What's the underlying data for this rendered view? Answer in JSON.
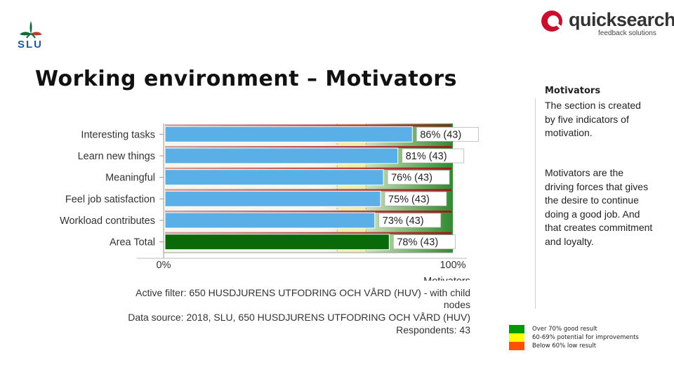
{
  "logos": {
    "slu_text": "SLU",
    "quicksearch_name": "quicksearch",
    "quicksearch_tagline": "feedback solutions"
  },
  "page": {
    "title": "Working environment – Motivators"
  },
  "side_panel": {
    "heading": "Motivators",
    "paragraph1": "The section is created by five indicators of motivation.",
    "paragraph2": "Motivators are the driving forces that gives the desire to continue doing a good job. And that creates commitment and loyalty."
  },
  "legend": [
    {
      "label": "Over 70% good result",
      "color": "#009a00"
    },
    {
      "label": "60-69% potential for improvements",
      "color": "#ffff00"
    },
    {
      "label": "Below 60% low result",
      "color": "#ff5000"
    }
  ],
  "chart_data": {
    "type": "bar",
    "orientation": "horizontal",
    "categories": [
      "Interesting tasks",
      "Learn new things",
      "Meaningful",
      "Feel job satisfaction",
      "Workload contributes",
      "Area Total"
    ],
    "values": [
      86,
      81,
      76,
      75,
      73,
      78
    ],
    "respondents": [
      43,
      43,
      43,
      43,
      43,
      43
    ],
    "data_labels": [
      "86% (43)",
      "81% (43)",
      "76% (43)",
      "75% (43)",
      "73% (43)",
      "78% (43)"
    ],
    "highlight_category": "Area Total",
    "xlim": [
      0,
      100
    ],
    "x_tick_labels": [
      "0%",
      "100%"
    ],
    "xlabel": "Motivators",
    "colors": {
      "bar": "#5ab0e6",
      "total_bar": "#0a6a0a",
      "good": "#009a00",
      "warning": "#ffff00",
      "low": "#ff5000"
    }
  },
  "footer": {
    "active_filter_line1": "Active filter: 650 HUSDJURENS UTFODRING OCH VÅRD (HUV) - with child",
    "active_filter_line2": "nodes",
    "data_source": "Data source: 2018, SLU, 650 HUSDJURENS UTFODRING OCH VÅRD (HUV)",
    "respondents": "Respondents: 43"
  }
}
